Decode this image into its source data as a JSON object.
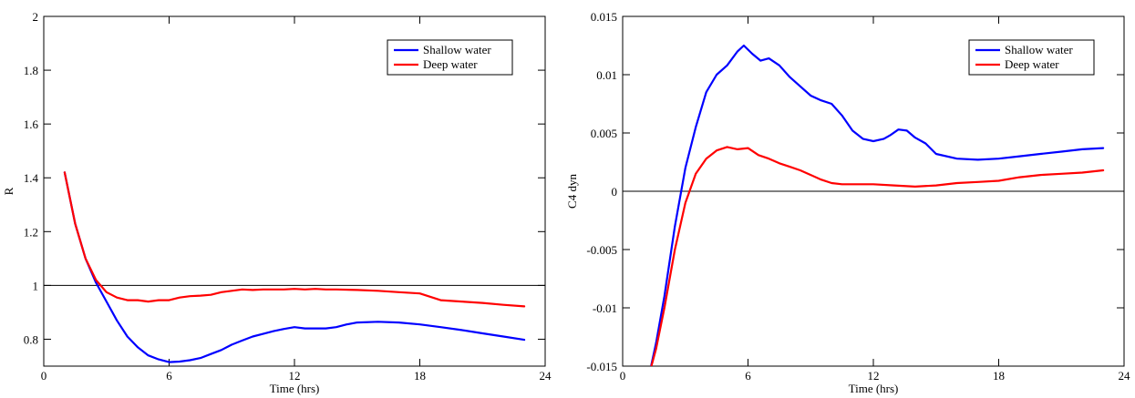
{
  "chart_data": [
    {
      "type": "line",
      "xlabel": "Time (hrs)",
      "ylabel": "R",
      "xlim": [
        0,
        24
      ],
      "ylim": [
        0.7,
        2.0
      ],
      "xticks": [
        0,
        6,
        12,
        18,
        24
      ],
      "yticks": [
        0.8,
        1.0,
        1.2,
        1.4,
        1.6,
        1.8,
        2.0
      ],
      "ytick_labels": [
        "0.8",
        "1",
        "1.2",
        "1.4",
        "1.6",
        "1.8",
        "2"
      ],
      "reference_line": 1.0,
      "grid": false,
      "legend_position": "top-right",
      "series": [
        {
          "name": "Shallow water",
          "color": "#0000ff",
          "x": [
            1.0,
            1.5,
            2.0,
            2.5,
            3.0,
            3.5,
            4.0,
            4.5,
            5.0,
            5.5,
            6.0,
            6.5,
            7.0,
            7.5,
            8.0,
            8.5,
            9.0,
            9.5,
            10.0,
            10.5,
            11.0,
            11.5,
            12.0,
            12.5,
            13.0,
            13.5,
            14.0,
            14.5,
            15.0,
            16.0,
            17.0,
            18.0,
            19.0,
            20.0,
            21.0,
            22.0,
            23.0
          ],
          "values": [
            1.42,
            1.23,
            1.1,
            1.01,
            0.94,
            0.87,
            0.81,
            0.77,
            0.74,
            0.725,
            0.715,
            0.717,
            0.722,
            0.73,
            0.745,
            0.76,
            0.78,
            0.795,
            0.81,
            0.82,
            0.83,
            0.838,
            0.845,
            0.84,
            0.84,
            0.84,
            0.845,
            0.855,
            0.862,
            0.865,
            0.862,
            0.855,
            0.845,
            0.834,
            0.822,
            0.81,
            0.798
          ]
        },
        {
          "name": "Deep water",
          "color": "#ff0000",
          "x": [
            1.0,
            1.5,
            2.0,
            2.5,
            3.0,
            3.5,
            4.0,
            4.5,
            5.0,
            5.5,
            6.0,
            6.5,
            7.0,
            7.5,
            8.0,
            8.5,
            9.0,
            9.5,
            10.0,
            10.5,
            11.0,
            11.5,
            12.0,
            12.5,
            13.0,
            13.5,
            14.0,
            15.0,
            16.0,
            17.0,
            18.0,
            19.0,
            20.0,
            21.0,
            22.0,
            23.0
          ],
          "values": [
            1.42,
            1.23,
            1.1,
            1.02,
            0.975,
            0.955,
            0.945,
            0.945,
            0.94,
            0.945,
            0.945,
            0.955,
            0.96,
            0.962,
            0.965,
            0.975,
            0.98,
            0.985,
            0.983,
            0.985,
            0.985,
            0.985,
            0.987,
            0.985,
            0.987,
            0.985,
            0.985,
            0.983,
            0.98,
            0.975,
            0.97,
            0.945,
            0.94,
            0.935,
            0.928,
            0.922
          ]
        }
      ]
    },
    {
      "type": "line",
      "xlabel": "Time (hrs)",
      "ylabel": "C4 dyn",
      "xlim": [
        0,
        24
      ],
      "ylim": [
        -0.015,
        0.015
      ],
      "xticks": [
        0,
        6,
        12,
        18,
        24
      ],
      "yticks": [
        -0.015,
        -0.01,
        -0.005,
        0,
        0.005,
        0.01,
        0.015
      ],
      "ytick_labels": [
        "-0.015",
        "-0.01",
        "-0.005",
        "0",
        "0.005",
        "0.01",
        "0.015"
      ],
      "reference_line": 0,
      "grid": false,
      "legend_position": "top-right",
      "series": [
        {
          "name": "Shallow water",
          "color": "#0000ff",
          "x": [
            1.3,
            1.6,
            2.0,
            2.5,
            3.0,
            3.5,
            4.0,
            4.5,
            5.0,
            5.5,
            5.8,
            6.2,
            6.6,
            7.0,
            7.5,
            8.0,
            8.5,
            9.0,
            9.5,
            10.0,
            10.5,
            11.0,
            11.5,
            12.0,
            12.5,
            12.8,
            13.2,
            13.6,
            14.0,
            14.5,
            15.0,
            16.0,
            17.0,
            18.0,
            19.0,
            20.0,
            21.0,
            22.0,
            23.0
          ],
          "values": [
            -0.0155,
            -0.013,
            -0.009,
            -0.003,
            0.002,
            0.0055,
            0.0085,
            0.01,
            0.0108,
            0.012,
            0.0125,
            0.0118,
            0.0112,
            0.0114,
            0.0108,
            0.0098,
            0.009,
            0.0082,
            0.0078,
            0.0075,
            0.0065,
            0.0052,
            0.0045,
            0.0043,
            0.0045,
            0.0048,
            0.0053,
            0.0052,
            0.0046,
            0.0041,
            0.0032,
            0.0028,
            0.0027,
            0.0028,
            0.003,
            0.0032,
            0.0034,
            0.0036,
            0.0037
          ]
        },
        {
          "name": "Deep water",
          "color": "#ff0000",
          "x": [
            1.3,
            1.6,
            2.0,
            2.5,
            3.0,
            3.5,
            4.0,
            4.5,
            5.0,
            5.5,
            6.0,
            6.5,
            7.0,
            7.5,
            8.0,
            8.5,
            9.0,
            9.5,
            10.0,
            10.5,
            11.0,
            11.5,
            12.0,
            13.0,
            14.0,
            15.0,
            16.0,
            17.0,
            18.0,
            19.0,
            20.0,
            21.0,
            22.0,
            23.0
          ],
          "values": [
            -0.0155,
            -0.0135,
            -0.01,
            -0.005,
            -0.001,
            0.0015,
            0.0028,
            0.0035,
            0.0038,
            0.0036,
            0.0037,
            0.0031,
            0.0028,
            0.0024,
            0.0021,
            0.0018,
            0.0014,
            0.001,
            0.0007,
            0.0006,
            0.0006,
            0.0006,
            0.0006,
            0.0005,
            0.0004,
            0.0005,
            0.0007,
            0.0008,
            0.0009,
            0.0012,
            0.0014,
            0.0015,
            0.0016,
            0.0018
          ]
        }
      ]
    }
  ]
}
